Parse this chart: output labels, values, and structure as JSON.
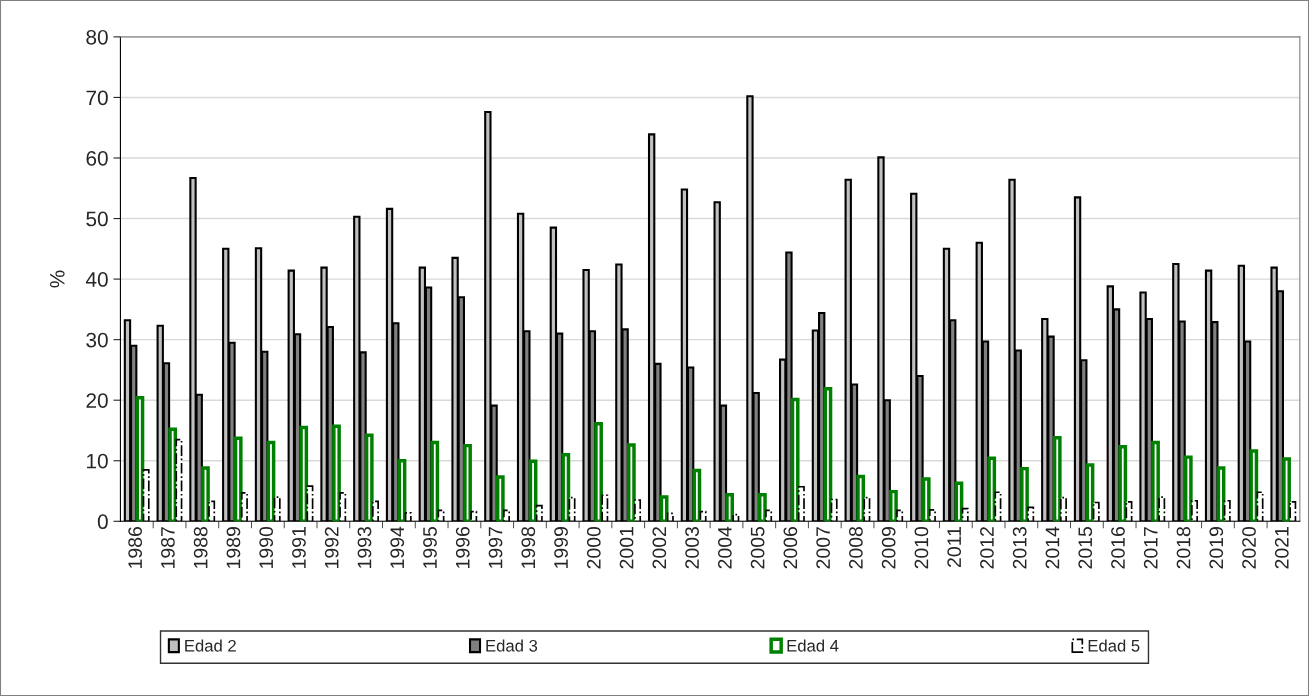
{
  "chart_data": {
    "type": "bar",
    "ylabel": "%",
    "categories": [
      "1986",
      "1987",
      "1988",
      "1989",
      "1990",
      "1991",
      "1992",
      "1993",
      "1994",
      "1995",
      "1996",
      "1997",
      "1998",
      "1999",
      "2000",
      "2001",
      "2002",
      "2003",
      "2004",
      "2005",
      "2006",
      "2007",
      "2008",
      "2009",
      "2010",
      "2011",
      "2012",
      "2013",
      "2014",
      "2015",
      "2016",
      "2017",
      "2018",
      "2019",
      "2020",
      "2021"
    ],
    "series": [
      {
        "name": "Edad 2",
        "color": "#c0c0c0",
        "values": [
          33.2,
          32.3,
          56.7,
          45,
          45.1,
          41.4,
          41.9,
          50.3,
          51.6,
          41.9,
          43.5,
          67.6,
          50.8,
          48.5,
          41.5,
          42.4,
          63.9,
          54.8,
          52.7,
          70.2,
          26.7,
          31.5,
          56.4,
          60.1,
          54.1,
          45,
          46,
          56.4,
          33.4,
          53.5,
          38.8,
          37.8,
          42.5,
          41.4,
          42.2,
          41.9
        ]
      },
      {
        "name": "Edad 3",
        "color": "#808080",
        "values": [
          29,
          26.1,
          20.9,
          29.5,
          28,
          30.9,
          32.1,
          27.9,
          32.7,
          38.6,
          37,
          19.1,
          31.4,
          31,
          31.4,
          31.7,
          26,
          25.4,
          19.1,
          21.2,
          44.4,
          34.4,
          22.6,
          20,
          24,
          33.2,
          29.7,
          28.2,
          30.5,
          26.6,
          35,
          33.4,
          33,
          32.9,
          29.7,
          38
        ]
      },
      {
        "name": "Edad 4",
        "color": "#008000",
        "values": [
          20.4,
          15.2,
          8.8,
          13.7,
          13,
          15.5,
          15.7,
          14.2,
          10,
          13,
          12.5,
          7.3,
          9.9,
          11,
          16.1,
          12.6,
          4,
          8.4,
          4.4,
          4.4,
          20.1,
          21.9,
          7.4,
          4.9,
          7,
          6.3,
          10.4,
          8.7,
          13.8,
          9.3,
          12.3,
          13,
          10.6,
          8.8,
          11.6,
          10.3
        ]
      },
      {
        "name": "Edad 5",
        "color": "#ffffff",
        "values": [
          8.5,
          13.5,
          3.3,
          4.7,
          4,
          5.8,
          4.7,
          3.3,
          1.4,
          1.8,
          1.6,
          1.8,
          2.6,
          3.9,
          4.3,
          3.5,
          1.3,
          1.6,
          1.1,
          1.8,
          5.7,
          3.6,
          3.9,
          1.8,
          1.9,
          2.1,
          4.8,
          2.3,
          3.9,
          3.1,
          3.2,
          4,
          3.4,
          3.4,
          4.8,
          3.2
        ]
      }
    ],
    "ylim": [
      0,
      80
    ],
    "yticks": [
      0,
      10,
      20,
      30,
      40,
      50,
      60,
      70,
      80
    ],
    "grid": "y",
    "legend": "bottom"
  }
}
